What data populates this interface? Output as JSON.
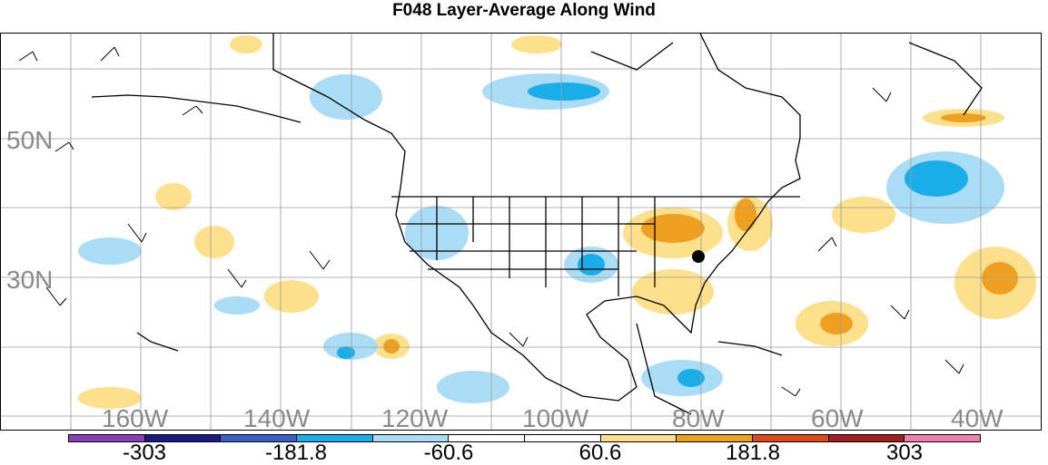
{
  "title": "F048 Layer-Average Along Wind",
  "lat_labels": [
    "50N",
    "30N"
  ],
  "lon_labels": [
    "160W",
    "140W",
    "120W",
    "100W",
    "80W",
    "60W",
    "40W"
  ],
  "colorbar": {
    "colors": [
      "#8a3fb8",
      "#1a1a80",
      "#3a5fc8",
      "#1aaee8",
      "#aadcf5",
      "#ffffff",
      "#ffffff",
      "#fce08c",
      "#f0a020",
      "#e04a1a",
      "#a02020",
      "#f080b0"
    ],
    "labels": [
      "-303",
      "-181.8",
      "-60.6",
      "60.6",
      "181.8",
      "303"
    ]
  },
  "map_colors": {
    "neg_light": "#aadcf5",
    "neg_mid": "#1aaee8",
    "pos_light": "#fce08c",
    "pos_mid": "#f0a020",
    "pos_high": "#e04a1a",
    "grid": "#9a9a9a",
    "coast": "#000000"
  },
  "marker": {
    "type": "station-dot"
  }
}
